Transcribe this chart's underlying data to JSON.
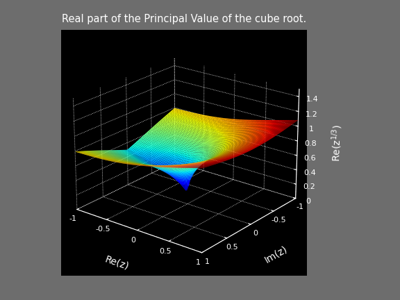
{
  "title": "Real part of the Principal Value of the cube root.",
  "xlabel": "Re(z)",
  "ylabel": "Im(z)",
  "zlabel": "Re(z^{1/3})",
  "xlim": [
    -1,
    1
  ],
  "ylim": [
    -1,
    1
  ],
  "zlim": [
    0,
    1.5
  ],
  "zticks": [
    0,
    0.2,
    0.4,
    0.6,
    0.8,
    1.0,
    1.2,
    1.4
  ],
  "xticks": [
    -1,
    -0.5,
    0,
    0.5,
    1
  ],
  "yticks": [
    1,
    0.5,
    0,
    -0.5,
    -1
  ],
  "background_color": "#6d6d6d",
  "pane_color": "black",
  "grid_color": "white",
  "title_color": "white",
  "label_color": "white",
  "tick_color": "white",
  "n_points": 80,
  "colormap": "jet",
  "elev": 22,
  "azim": -52
}
